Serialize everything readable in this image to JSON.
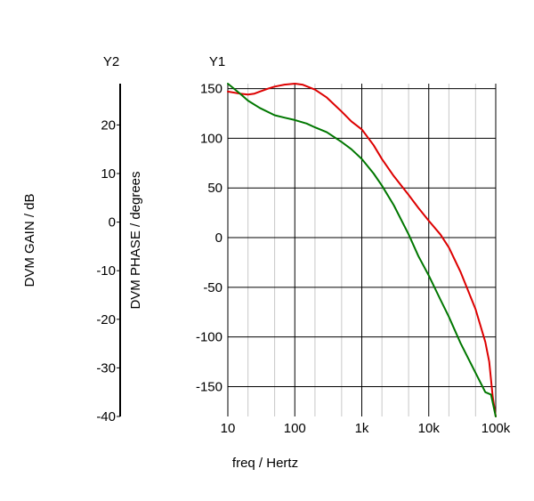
{
  "chart_data": {
    "type": "line",
    "xlabel": "freq / Hertz",
    "x_scale": "log",
    "xlim": [
      10,
      100000
    ],
    "x_ticks": [
      {
        "value": 10,
        "label": "10"
      },
      {
        "value": 100,
        "label": "100"
      },
      {
        "value": 1000,
        "label": "1k"
      },
      {
        "value": 10000,
        "label": "10k"
      },
      {
        "value": 100000,
        "label": "100k"
      }
    ],
    "y1": {
      "header": "Y1",
      "label": "DVM PHASE / degrees",
      "ylim": [
        -180,
        155
      ],
      "ticks": [
        150,
        100,
        50,
        0,
        -50,
        -100,
        -150
      ]
    },
    "y2": {
      "header": "Y2",
      "label": "DVM GAIN / dB",
      "ylim": [
        -40,
        28.5
      ],
      "ticks": [
        20,
        10,
        0,
        -10,
        -20,
        -30,
        -40
      ]
    },
    "grid": true,
    "series": [
      {
        "axis": "y1",
        "color": "#dd0000",
        "points": [
          [
            10,
            147
          ],
          [
            15,
            145
          ],
          [
            20,
            144
          ],
          [
            25,
            145
          ],
          [
            30,
            147
          ],
          [
            40,
            150
          ],
          [
            50,
            152
          ],
          [
            70,
            154
          ],
          [
            100,
            155
          ],
          [
            130,
            154
          ],
          [
            200,
            149
          ],
          [
            300,
            141
          ],
          [
            500,
            127
          ],
          [
            700,
            117
          ],
          [
            1000,
            109
          ],
          [
            1500,
            93
          ],
          [
            2000,
            79
          ],
          [
            3000,
            62
          ],
          [
            5000,
            43
          ],
          [
            7000,
            30
          ],
          [
            10000,
            17
          ],
          [
            15000,
            3
          ],
          [
            20000,
            -10
          ],
          [
            30000,
            -35
          ],
          [
            50000,
            -72
          ],
          [
            70000,
            -105
          ],
          [
            80000,
            -125
          ],
          [
            90000,
            -160
          ],
          [
            100000,
            -180
          ]
        ]
      },
      {
        "axis": "y2",
        "color": "#007700",
        "points": [
          [
            10,
            28.5
          ],
          [
            15,
            26.5
          ],
          [
            20,
            25
          ],
          [
            30,
            23.5
          ],
          [
            50,
            22
          ],
          [
            70,
            21.5
          ],
          [
            100,
            21
          ],
          [
            150,
            20.3
          ],
          [
            200,
            19.5
          ],
          [
            300,
            18.5
          ],
          [
            500,
            16.5
          ],
          [
            700,
            15
          ],
          [
            1000,
            13
          ],
          [
            1500,
            10
          ],
          [
            2000,
            7.5
          ],
          [
            3000,
            3.5
          ],
          [
            5000,
            -2.5
          ],
          [
            7000,
            -7
          ],
          [
            10000,
            -11
          ],
          [
            15000,
            -16
          ],
          [
            20000,
            -19.5
          ],
          [
            30000,
            -25
          ],
          [
            50000,
            -31
          ],
          [
            70000,
            -35
          ],
          [
            85000,
            -35.5
          ],
          [
            100000,
            -40
          ]
        ]
      }
    ]
  }
}
